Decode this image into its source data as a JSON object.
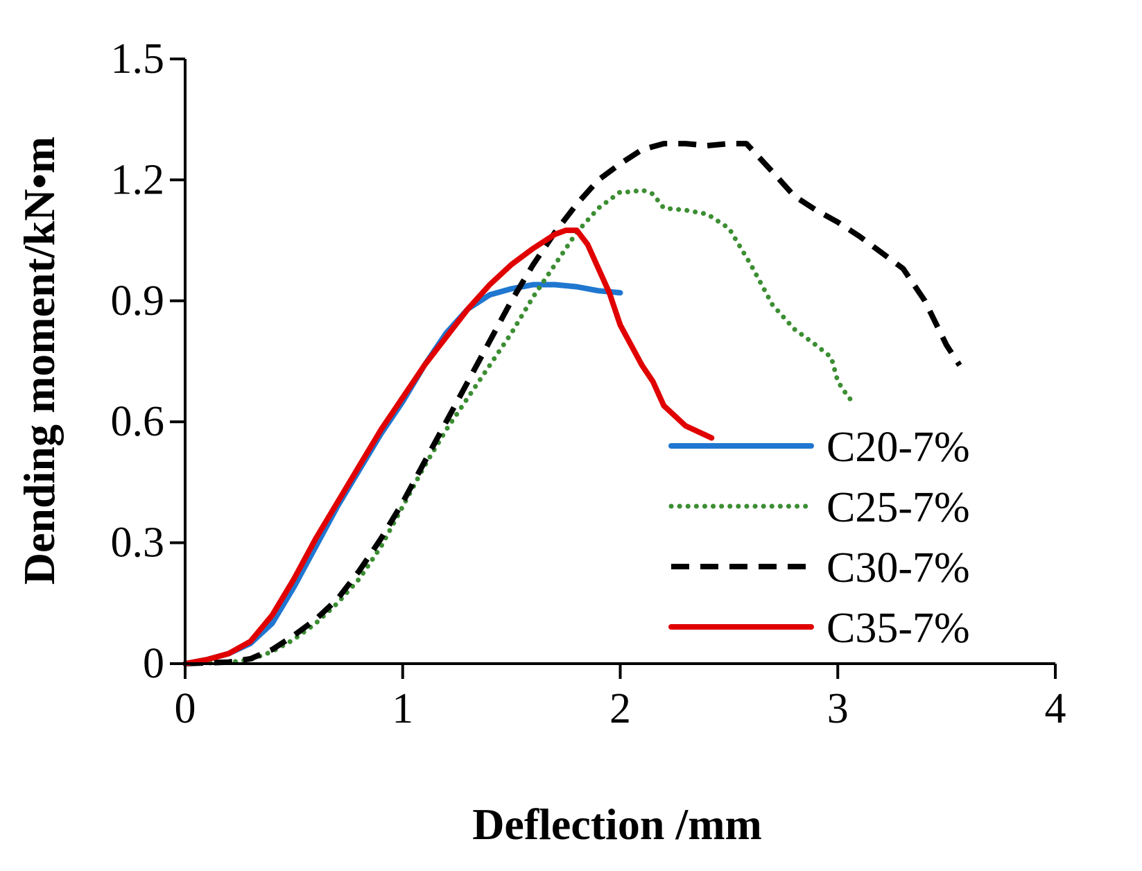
{
  "chart_data": {
    "type": "line",
    "title": "",
    "xlabel": "Deflection /mm",
    "ylabel": "Dending moment/kN•m",
    "xlim": [
      0,
      4
    ],
    "ylim": [
      0,
      1.5
    ],
    "x_ticks": [
      0,
      1,
      2,
      3,
      4
    ],
    "x_tick_labels": [
      "0",
      "1",
      "2",
      "3",
      "4"
    ],
    "y_ticks": [
      0,
      0.3,
      0.6,
      0.9,
      1.2,
      1.5
    ],
    "y_tick_labels": [
      "0",
      "0.3",
      "0.6",
      "0.9",
      "1.2",
      "1.5"
    ],
    "grid": false,
    "legend_position": "lower-right",
    "series": [
      {
        "name": "C20-7%",
        "color": "#1F77D0",
        "style": "solid",
        "x": [
          0,
          0.1,
          0.2,
          0.3,
          0.4,
          0.5,
          0.6,
          0.7,
          0.8,
          0.9,
          1.0,
          1.1,
          1.2,
          1.3,
          1.4,
          1.5,
          1.6,
          1.7,
          1.8,
          1.9,
          2.0
        ],
        "y": [
          0,
          0.01,
          0.025,
          0.05,
          0.1,
          0.19,
          0.29,
          0.39,
          0.48,
          0.57,
          0.65,
          0.74,
          0.82,
          0.88,
          0.915,
          0.93,
          0.94,
          0.94,
          0.935,
          0.925,
          0.92
        ]
      },
      {
        "name": "C25-7%",
        "color": "#3C8E33",
        "style": "dotted",
        "x": [
          0,
          0.2,
          0.3,
          0.4,
          0.5,
          0.6,
          0.7,
          0.8,
          0.9,
          1.0,
          1.1,
          1.2,
          1.3,
          1.4,
          1.5,
          1.6,
          1.7,
          1.8,
          1.9,
          2.0,
          2.05,
          2.1,
          2.15,
          2.2,
          2.3,
          2.4,
          2.5,
          2.6,
          2.7,
          2.8,
          2.9,
          2.97,
          3.0,
          3.05,
          3.08
        ],
        "y": [
          0,
          0.003,
          0.01,
          0.03,
          0.06,
          0.1,
          0.15,
          0.21,
          0.29,
          0.39,
          0.49,
          0.58,
          0.66,
          0.74,
          0.82,
          0.91,
          0.99,
          1.07,
          1.13,
          1.17,
          1.17,
          1.175,
          1.165,
          1.13,
          1.125,
          1.115,
          1.08,
          0.99,
          0.89,
          0.83,
          0.79,
          0.76,
          0.7,
          0.66,
          0.645
        ]
      },
      {
        "name": "C30-7%",
        "color": "#000000",
        "style": "dashed",
        "x": [
          0,
          0.2,
          0.3,
          0.4,
          0.5,
          0.6,
          0.7,
          0.8,
          0.9,
          1.0,
          1.1,
          1.2,
          1.3,
          1.4,
          1.5,
          1.6,
          1.7,
          1.8,
          1.9,
          2.0,
          2.1,
          2.2,
          2.3,
          2.4,
          2.5,
          2.58,
          2.7,
          2.8,
          2.9,
          3.0,
          3.1,
          3.2,
          3.25,
          3.3,
          3.4,
          3.5,
          3.56
        ],
        "y": [
          0,
          0.004,
          0.012,
          0.035,
          0.07,
          0.11,
          0.16,
          0.23,
          0.31,
          0.4,
          0.5,
          0.6,
          0.7,
          0.8,
          0.9,
          0.99,
          1.07,
          1.14,
          1.2,
          1.24,
          1.275,
          1.29,
          1.29,
          1.285,
          1.29,
          1.29,
          1.22,
          1.16,
          1.125,
          1.095,
          1.06,
          1.02,
          1.0,
          0.98,
          0.9,
          0.79,
          0.74
        ]
      },
      {
        "name": "C35-7%",
        "color": "#E00000",
        "style": "solid",
        "x": [
          0,
          0.1,
          0.2,
          0.3,
          0.4,
          0.5,
          0.6,
          0.7,
          0.8,
          0.9,
          1.0,
          1.1,
          1.2,
          1.3,
          1.4,
          1.5,
          1.6,
          1.7,
          1.75,
          1.8,
          1.85,
          1.9,
          1.95,
          2.0,
          2.05,
          2.1,
          2.15,
          2.2,
          2.3,
          2.42
        ],
        "y": [
          0,
          0.01,
          0.025,
          0.055,
          0.12,
          0.21,
          0.31,
          0.4,
          0.49,
          0.58,
          0.66,
          0.74,
          0.81,
          0.88,
          0.94,
          0.99,
          1.03,
          1.065,
          1.075,
          1.075,
          1.04,
          0.98,
          0.92,
          0.84,
          0.79,
          0.74,
          0.7,
          0.64,
          0.59,
          0.56
        ]
      }
    ]
  }
}
